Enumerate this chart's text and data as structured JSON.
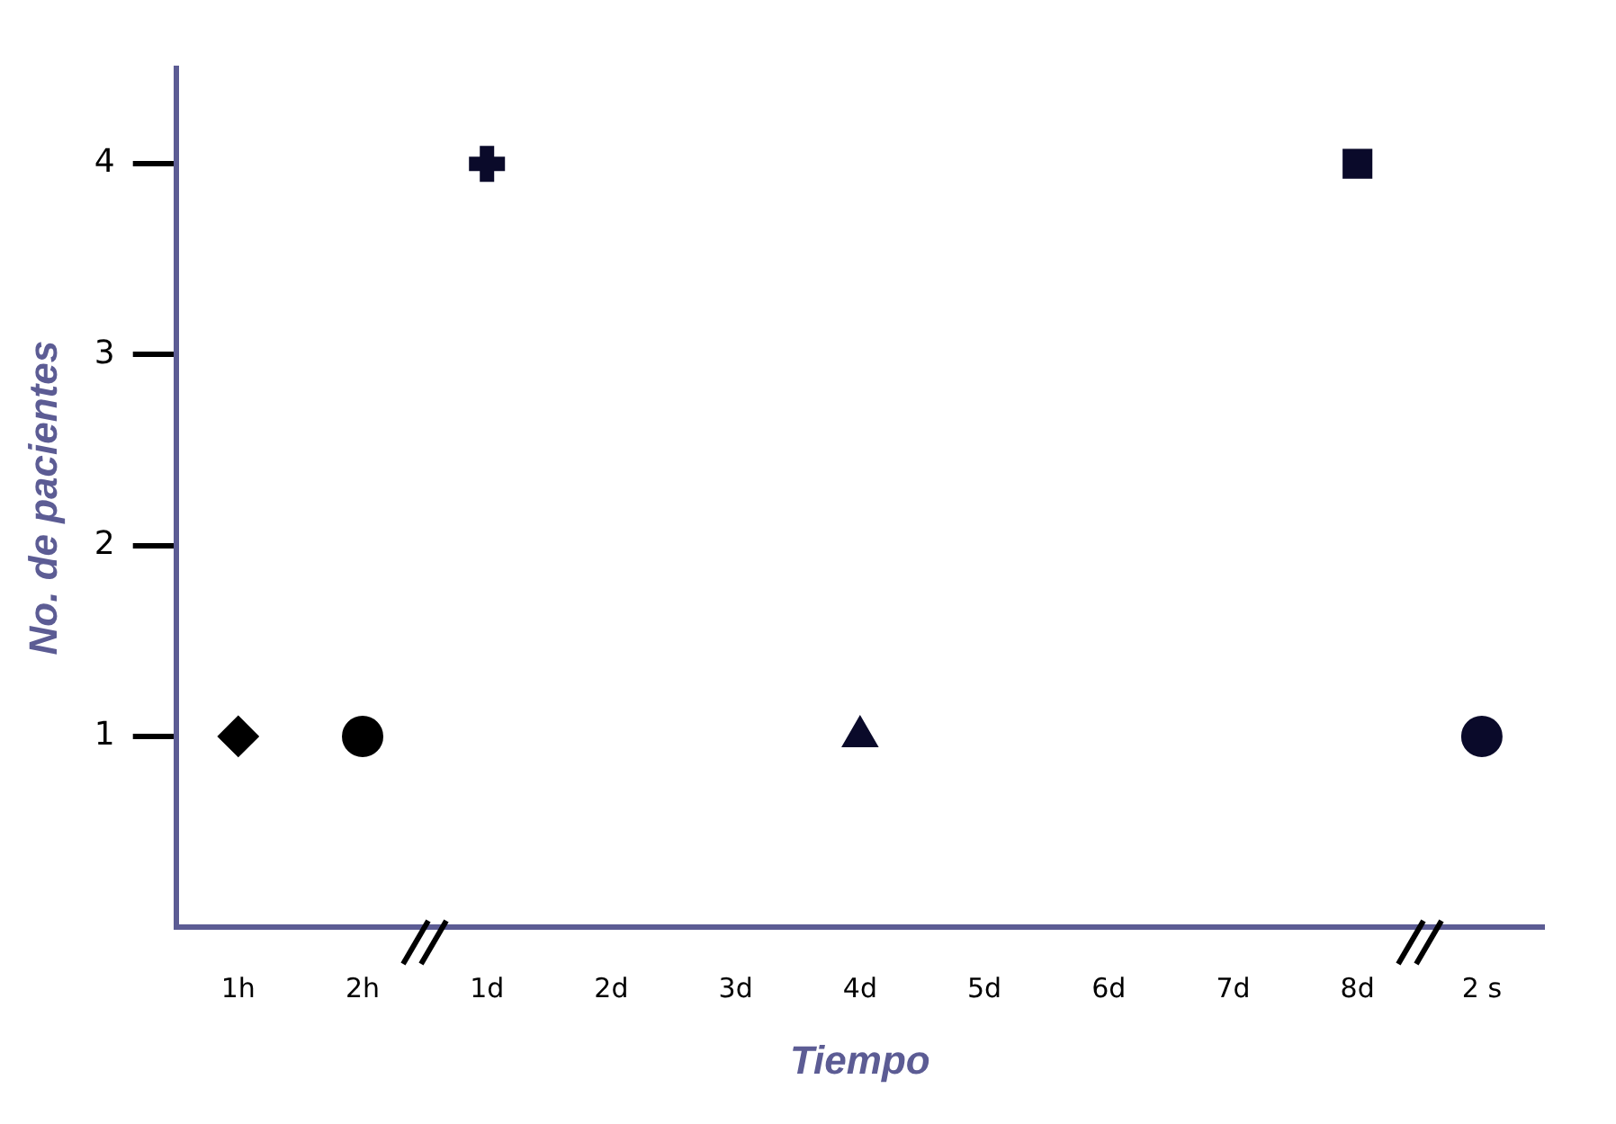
{
  "chart_data": {
    "type": "scatter",
    "xlabel": "Tiempo",
    "ylabel": "No. de pacientes",
    "categories": [
      "1h",
      "2h",
      "1d",
      "2d",
      "3d",
      "4d",
      "5d",
      "6d",
      "7d",
      "8d",
      "2 s"
    ],
    "series": [
      {
        "color": "#000000",
        "marker": "diamond",
        "values": [
          1,
          null,
          null,
          null,
          null,
          null,
          null,
          null,
          null,
          null,
          null
        ]
      },
      {
        "color": "#000000",
        "marker": "circle",
        "values": [
          null,
          1,
          null,
          null,
          null,
          null,
          null,
          null,
          null,
          null,
          null
        ]
      },
      {
        "color": "#0a0a2a",
        "marker": "cross",
        "values": [
          null,
          null,
          4,
          null,
          null,
          null,
          null,
          null,
          null,
          null,
          null
        ]
      },
      {
        "color": "#0a0a2a",
        "marker": "triangle",
        "values": [
          null,
          null,
          null,
          null,
          null,
          1,
          null,
          null,
          null,
          null,
          null
        ]
      },
      {
        "color": "#0a0a2a",
        "marker": "square",
        "values": [
          null,
          null,
          null,
          null,
          null,
          null,
          null,
          null,
          null,
          4,
          null
        ]
      },
      {
        "color": "#0a0a2a",
        "marker": "circle",
        "values": [
          null,
          null,
          null,
          null,
          null,
          null,
          null,
          null,
          null,
          null,
          1
        ]
      }
    ],
    "ylim": [
      0,
      4.5
    ],
    "yticks": [
      1,
      2,
      3,
      4
    ],
    "grid": false,
    "legend": false
  }
}
